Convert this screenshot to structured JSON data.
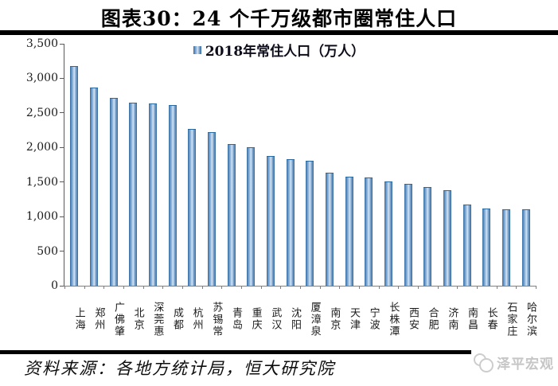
{
  "title": "图表30：24 个千万级都市圈常住人口",
  "legend": {
    "label": "2018年常住人口（万人）"
  },
  "source_note": "资料来源：各地方统计局，恒大研究院",
  "watermark": {
    "label": "泽平宏观"
  },
  "colors": {
    "bar_edge": "#31689e",
    "bar_center": "#d9e6f3",
    "axis": "#7f7f7f",
    "rule": "#000000",
    "watermark_text": "#c6c6c6"
  },
  "chart_data": {
    "type": "bar",
    "title": "图表30：24 个千万级都市圈常住人口",
    "legend_entries": [
      "2018年常住人口（万人）"
    ],
    "legend_position": "top-center",
    "xlabel": "",
    "ylabel": "2018年常住人口（万人）",
    "ylim": [
      0,
      3500
    ],
    "ytick_interval": 500,
    "ytick_labels": [
      "0",
      "500",
      "1,000",
      "1,500",
      "2,000",
      "2,500",
      "3,000",
      "3,500"
    ],
    "grid": false,
    "categories": [
      "上海",
      "郑州",
      "广佛肇",
      "北京",
      "深莞惠",
      "成都",
      "杭州",
      "苏锡常",
      "青岛",
      "重庆",
      "武汉",
      "沈阳",
      "厦漳泉",
      "南京",
      "天津",
      "宁波",
      "长株潭",
      "西安",
      "合肥",
      "济南",
      "南昌",
      "长春",
      "石家庄",
      "哈尔滨"
    ],
    "values": [
      3170,
      2860,
      2710,
      2640,
      2630,
      2600,
      2260,
      2210,
      2040,
      1990,
      1860,
      1820,
      1800,
      1620,
      1570,
      1550,
      1500,
      1460,
      1420,
      1370,
      1160,
      1100,
      1090,
      1090
    ]
  }
}
